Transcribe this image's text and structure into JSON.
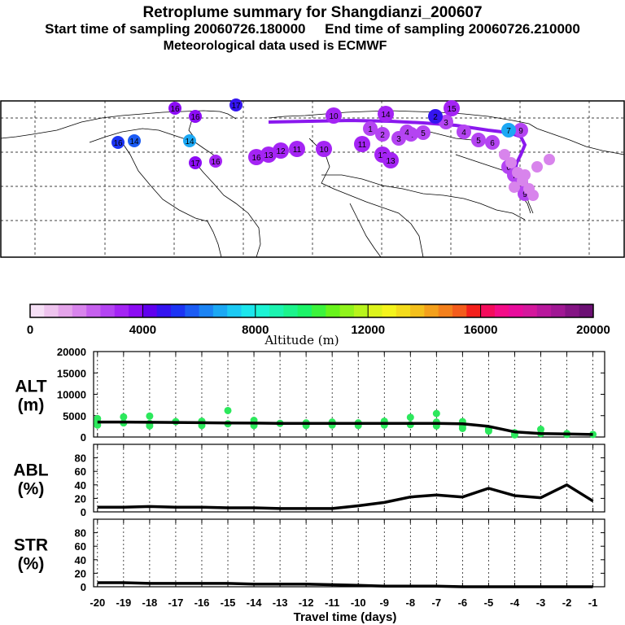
{
  "title": {
    "line1": "Retroplume summary for Shangdianzi_200607",
    "line2": "Start time of sampling 20060726.180000     End time of sampling 20060726.210000",
    "line3": "Meteorological data used is ECMWF"
  },
  "colorbar": {
    "title": "Altitude (m)",
    "ticks": [
      "0",
      "4000",
      "8000",
      "12000",
      "16000",
      "20000"
    ],
    "colors": [
      "#f6e0f6",
      "#eec4ee",
      "#e4a4ea",
      "#d884ec",
      "#c660ee",
      "#b444f2",
      "#a424f4",
      "#8c0cf4",
      "#6000ee",
      "#3414f0",
      "#1c34f4",
      "#1c5cf4",
      "#1c84f4",
      "#1ca8f4",
      "#1ccaf4",
      "#1ce6ec",
      "#1cf4d4",
      "#1cf4b0",
      "#1cf48c",
      "#1cf468",
      "#3cf43c",
      "#68f41c",
      "#90f41c",
      "#b8f41c",
      "#dcf41c",
      "#f4f41c",
      "#f4dc1c",
      "#f4c01c",
      "#f4a01c",
      "#f4801c",
      "#f45c1c",
      "#f4201c",
      "#f40c5c",
      "#f40c88",
      "#e80c9c",
      "#d4189c",
      "#b8189c",
      "#a01894",
      "#841484",
      "#6c1074"
    ]
  },
  "map": {
    "labels_west": [
      "16",
      "17",
      "16",
      "16",
      "14",
      "14",
      "17",
      "16"
    ],
    "labels_arctic": [
      "16",
      "13",
      "12",
      "11",
      "10",
      "10",
      "11",
      "12",
      "13",
      "14",
      "15"
    ],
    "labels_east": [
      "9",
      "7",
      "6",
      "5",
      "4",
      "3",
      "2",
      "1",
      "5",
      "4",
      "3",
      "2",
      "1",
      "6",
      "7",
      "8",
      "9"
    ]
  },
  "chart_data": [
    {
      "type": "line",
      "panel": "ALT",
      "label": "ALT\n(m)",
      "label_line1": "ALT",
      "label_line2": "(m)",
      "x": [
        -20,
        -19,
        -18,
        -17,
        -16,
        -15,
        -14,
        -13,
        -12,
        -11,
        -10,
        -9,
        -8,
        -7,
        -6,
        -5,
        -4,
        -3,
        -2,
        -1
      ],
      "series": [
        {
          "name": "mean altitude",
          "color": "#000000",
          "values": [
            3500,
            3500,
            3450,
            3400,
            3350,
            3300,
            3250,
            3200,
            3200,
            3200,
            3200,
            3200,
            3200,
            3200,
            3100,
            2500,
            1200,
            800,
            700,
            600
          ]
        }
      ],
      "scatter": {
        "name": "altitude clusters",
        "color": "#2ce85c",
        "points": [
          [
            -20,
            3500
          ],
          [
            -20,
            4300
          ],
          [
            -20,
            2800
          ],
          [
            -19,
            3300
          ],
          [
            -19,
            4700
          ],
          [
            -18,
            3200
          ],
          [
            -18,
            4900
          ],
          [
            -18,
            2600
          ],
          [
            -17,
            3600
          ],
          [
            -16,
            3700
          ],
          [
            -16,
            2700
          ],
          [
            -15,
            6200
          ],
          [
            -15,
            3100
          ],
          [
            -14,
            3900
          ],
          [
            -14,
            2700
          ],
          [
            -13,
            3200
          ],
          [
            -12,
            3300
          ],
          [
            -12,
            2700
          ],
          [
            -11,
            3500
          ],
          [
            -11,
            2800
          ],
          [
            -10,
            3300
          ],
          [
            -10,
            2700
          ],
          [
            -9,
            3700
          ],
          [
            -9,
            2800
          ],
          [
            -8,
            4600
          ],
          [
            -8,
            2900
          ],
          [
            -7,
            5500
          ],
          [
            -7,
            3500
          ],
          [
            -7,
            2600
          ],
          [
            -6,
            3600
          ],
          [
            -6,
            2500
          ],
          [
            -6,
            2000
          ],
          [
            -5,
            1800
          ],
          [
            -5,
            1400
          ],
          [
            -4,
            1000
          ],
          [
            -4,
            500
          ],
          [
            -3,
            1800
          ],
          [
            -3,
            800
          ],
          [
            -2,
            800
          ],
          [
            -2,
            600
          ],
          [
            -1,
            600
          ]
        ]
      },
      "ylim": [
        0,
        20000
      ],
      "yticks": [
        "0",
        "5000",
        "10000",
        "15000",
        "20000"
      ],
      "xlim": [
        -20.15,
        -0.55
      ]
    },
    {
      "type": "line",
      "panel": "ABL",
      "label": "ABL\n(%)",
      "label_line1": "ABL",
      "label_line2": "(%)",
      "x": [
        -20,
        -19,
        -18,
        -17,
        -16,
        -15,
        -14,
        -13,
        -12,
        -11,
        -10,
        -9,
        -8,
        -7,
        -6,
        -5,
        -4,
        -3,
        -2,
        -1
      ],
      "series": [
        {
          "name": "ABL fraction",
          "color": "#000000",
          "values": [
            7,
            7,
            8,
            7,
            7,
            6,
            6,
            5,
            5,
            5,
            9,
            14,
            22,
            25,
            22,
            35,
            24,
            21,
            40,
            16
          ]
        }
      ],
      "ylim": [
        0,
        100
      ],
      "yticks": [
        "0",
        "20",
        "40",
        "60",
        "80"
      ],
      "xlim": [
        -20.15,
        -0.55
      ]
    },
    {
      "type": "line",
      "panel": "STR",
      "label": "STR\n(%)",
      "label_line1": "STR",
      "label_line2": "(%)",
      "x": [
        -20,
        -19,
        -18,
        -17,
        -16,
        -15,
        -14,
        -13,
        -12,
        -11,
        -10,
        -9,
        -8,
        -7,
        -6,
        -5,
        -4,
        -3,
        -2,
        -1
      ],
      "series": [
        {
          "name": "stratospheric fraction",
          "color": "#000000",
          "values": [
            6,
            6,
            5,
            5,
            5,
            5,
            4,
            4,
            4,
            3,
            2,
            1,
            1,
            1,
            0,
            0,
            0,
            0,
            0,
            0
          ]
        }
      ],
      "ylim": [
        0,
        100
      ],
      "yticks": [
        "0",
        "20",
        "40",
        "60",
        "80"
      ],
      "xlim": [
        -20.15,
        -0.55
      ],
      "xlabel": "Travel time (days)",
      "xticks": [
        "-20",
        "-19",
        "-18",
        "-17",
        "-16",
        "-15",
        "-14",
        "-13",
        "-12",
        "-11",
        "-10",
        "-9",
        "-8",
        "-7",
        "-6",
        "-5",
        "-4",
        "-3",
        "-2",
        "-1"
      ]
    }
  ]
}
